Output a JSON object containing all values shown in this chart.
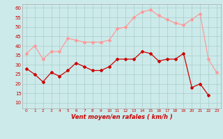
{
  "x": [
    0,
    1,
    2,
    3,
    4,
    5,
    6,
    7,
    8,
    9,
    10,
    11,
    12,
    13,
    14,
    15,
    16,
    17,
    18,
    19,
    20,
    21,
    22,
    23
  ],
  "mean_wind": [
    28,
    25,
    21,
    26,
    24,
    27,
    31,
    29,
    27,
    27,
    29,
    33,
    33,
    33,
    37,
    36,
    32,
    33,
    33,
    36,
    18,
    20,
    14,
    null
  ],
  "gust_wind": [
    36,
    40,
    33,
    37,
    37,
    44,
    43,
    42,
    42,
    42,
    43,
    49,
    50,
    55,
    58,
    59,
    56,
    54,
    52,
    51,
    54,
    57,
    33,
    26
  ],
  "bg_color": "#cceaea",
  "grid_color": "#aacccc",
  "mean_color": "#cc0000",
  "gust_color": "#ff9999",
  "xlabel": "Vent moyen/en rafales ( km/h )",
  "xlabel_color": "#cc0000",
  "ylim": [
    7,
    62
  ],
  "yticks": [
    10,
    15,
    20,
    25,
    30,
    35,
    40,
    45,
    50,
    55,
    60
  ],
  "xlim": [
    -0.5,
    23.5
  ],
  "tick_color": "#cc0000",
  "spine_color": "#aaaaaa",
  "marker": "D",
  "markersize": 2.0,
  "linewidth": 0.9
}
